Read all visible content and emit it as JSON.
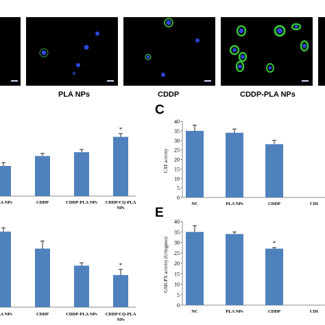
{
  "micrograph_labels": [
    "PLA NPs",
    "CDDP",
    "CDDP-PLA NPs"
  ],
  "panel_letters": [
    "C",
    "E"
  ],
  "bar_color": "#4f81bd",
  "error_color": "#2a2a2a",
  "fluorescence_colors": {
    "cell_green": "#38c23a",
    "nucleus_blue": "#2f46d8",
    "background": "#000000"
  },
  "chart_data": [
    {
      "id": "top-left",
      "type": "bar",
      "categories": [
        "PLA NPs",
        "CDDP",
        "CDDP-PLA NPs",
        "CDDP/CQ-PLA\nNPs"
      ],
      "category_display": [
        "LA NPs",
        "CDDP",
        "CDDP-PLA NPs",
        "CDDP/CQ-PLA NPs"
      ],
      "values": [
        55,
        73,
        80,
        108
      ],
      "errors": [
        6,
        5,
        5,
        6
      ],
      "significance": [
        "",
        "",
        "",
        "*"
      ],
      "ylim": [
        0,
        140
      ],
      "grid": false
    },
    {
      "id": "C",
      "type": "bar",
      "categories": [
        "NC",
        "PLA NPs",
        "CDDP",
        "CDDP-PLA NPs"
      ],
      "category_display": [
        "NC",
        "PLA NPs",
        "CDDP",
        "CDI"
      ],
      "values": [
        35,
        34,
        28,
        0
      ],
      "errors": [
        3,
        2,
        2,
        0
      ],
      "significance": [
        "",
        "",
        "",
        ""
      ],
      "yticks": [
        0,
        5,
        10,
        15,
        20,
        25,
        30,
        35,
        40
      ],
      "ylabel": "CAT activity",
      "ylim": [
        0,
        40
      ],
      "grid": false
    },
    {
      "id": "bottom-left",
      "type": "bar",
      "categories": [
        "PLA NPs",
        "CDDP",
        "CDDP-PLA NPs",
        "CDDP/CQ-PLA\nNPs"
      ],
      "category_display": [
        "LA NPs",
        "CDDP",
        "CDDP-PLA NPs",
        "CDDP/CQ-PLA NPs"
      ],
      "values": [
        40,
        31,
        22,
        17
      ],
      "errors": [
        2,
        4,
        1.5,
        3
      ],
      "significance": [
        "",
        "",
        "",
        "*"
      ],
      "ylim": [
        0,
        45
      ],
      "grid": false
    },
    {
      "id": "E",
      "type": "bar",
      "categories": [
        "NC",
        "PLA NPs",
        "CDDP",
        "CDDP-PLA NPs"
      ],
      "category_display": [
        "NC",
        "PLA NPs",
        "CDDP",
        "CDI"
      ],
      "values": [
        35,
        34,
        27,
        0
      ],
      "errors": [
        3,
        1,
        0.5,
        0
      ],
      "significance": [
        "",
        "",
        "*",
        ""
      ],
      "yticks": [
        0,
        5,
        10,
        15,
        20,
        25,
        30,
        35,
        40
      ],
      "ylabel": "GSH-PX activity (U/mgprot)",
      "ylim": [
        0,
        40
      ],
      "grid": false
    }
  ]
}
